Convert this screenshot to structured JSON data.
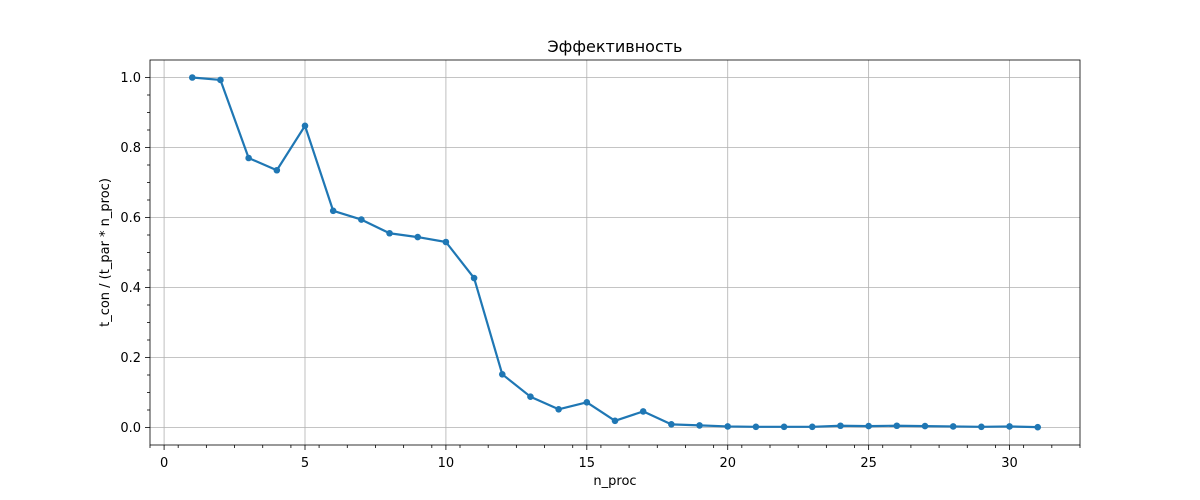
{
  "chart_data": {
    "type": "line",
    "title": "Эффективность",
    "xlabel": "n_proc",
    "ylabel": "t_con / (t_par * n_proc)",
    "xlim": [
      -0.5,
      32.5
    ],
    "ylim": [
      -0.05,
      1.05
    ],
    "xticks": [
      0,
      5,
      10,
      15,
      20,
      25,
      30
    ],
    "yticks": [
      0.0,
      0.2,
      0.4,
      0.6,
      0.8,
      1.0
    ],
    "xtick_labels": [
      "0",
      "5",
      "10",
      "15",
      "20",
      "25",
      "30"
    ],
    "ytick_labels": [
      "0.0",
      "0.2",
      "0.4",
      "0.6",
      "0.8",
      "1.0"
    ],
    "grid": true,
    "legend": "none",
    "color": "#1f77b4",
    "x": [
      1,
      2,
      3,
      4,
      5,
      6,
      7,
      8,
      9,
      10,
      11,
      12,
      13,
      14,
      15,
      16,
      17,
      18,
      19,
      20,
      21,
      22,
      23,
      24,
      25,
      26,
      27,
      28,
      29,
      30,
      31
    ],
    "y": [
      1.0,
      0.993,
      0.77,
      0.735,
      0.862,
      0.619,
      0.594,
      0.555,
      0.544,
      0.53,
      0.427,
      0.152,
      0.088,
      0.052,
      0.072,
      0.019,
      0.046,
      0.009,
      0.006,
      0.003,
      0.002,
      0.002,
      0.002,
      0.005,
      0.004,
      0.005,
      0.004,
      0.003,
      0.002,
      0.003,
      0.001
    ]
  }
}
